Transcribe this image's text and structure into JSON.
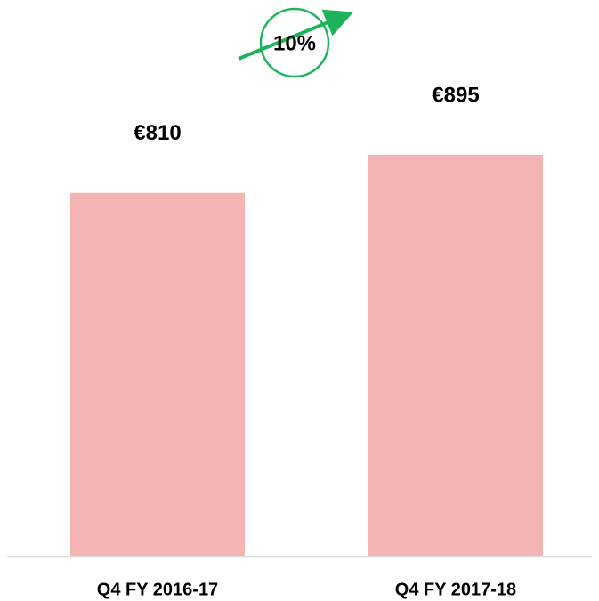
{
  "chart_data": {
    "type": "bar",
    "categories": [
      "Q4 FY 2016-17",
      "Q4 FY 2017-18"
    ],
    "values": [
      810,
      895
    ],
    "value_labels": [
      "€810",
      "€895"
    ],
    "color": "#f4b4b4",
    "ylim": [
      0,
      1000
    ],
    "annotations": [
      {
        "text": "10%",
        "color": "#1db35a"
      }
    ]
  }
}
